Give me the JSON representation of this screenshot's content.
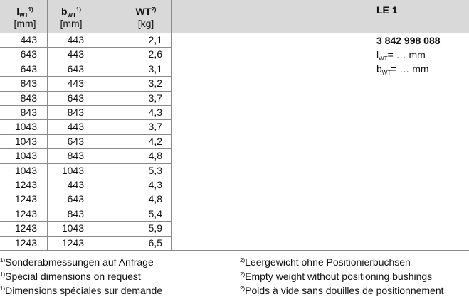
{
  "header": {
    "columns": [
      {
        "name": "l",
        "sub": "WT",
        "sup": "1)",
        "unit": "[mm]"
      },
      {
        "name": "b",
        "sub": "WT",
        "sup": "1)",
        "unit": "[mm]"
      },
      {
        "name": "WT",
        "sup": "2)",
        "unit": "[kg]"
      }
    ],
    "title": "LE 1"
  },
  "part": {
    "number": "3 842 998 088",
    "lines": [
      {
        "name": "l",
        "sub": "WT",
        "text": "= … mm"
      },
      {
        "name": "b",
        "sub": "WT",
        "text": "= … mm"
      }
    ]
  },
  "table": {
    "rows": [
      [
        "443",
        "443",
        "2,1"
      ],
      [
        "643",
        "443",
        "2,6"
      ],
      [
        "643",
        "643",
        "3,1"
      ],
      [
        "843",
        "443",
        "3,2"
      ],
      [
        "843",
        "643",
        "3,7"
      ],
      [
        "843",
        "843",
        "4,3"
      ],
      [
        "1043",
        "443",
        "3,7"
      ],
      [
        "1043",
        "643",
        "4,2"
      ],
      [
        "1043",
        "843",
        "4,8"
      ],
      [
        "1043",
        "1043",
        "5,3"
      ],
      [
        "1243",
        "443",
        "4,3"
      ],
      [
        "1243",
        "643",
        "4,8"
      ],
      [
        "1243",
        "843",
        "5,4"
      ],
      [
        "1243",
        "1043",
        "5,9"
      ],
      [
        "1243",
        "1243",
        "6,5"
      ]
    ]
  },
  "footnotes": {
    "left": {
      "mark": "1)",
      "lines": [
        "Sonderabmessungen auf Anfrage",
        "Special dimensions on request",
        "Dimensions spéciales sur demande"
      ]
    },
    "right": {
      "mark": "2)",
      "lines": [
        "Leergewicht ohne Positionierbuchsen",
        "Empty weight without positioning bushings",
        "Poids à vide sans douilles de positionnement"
      ]
    }
  }
}
